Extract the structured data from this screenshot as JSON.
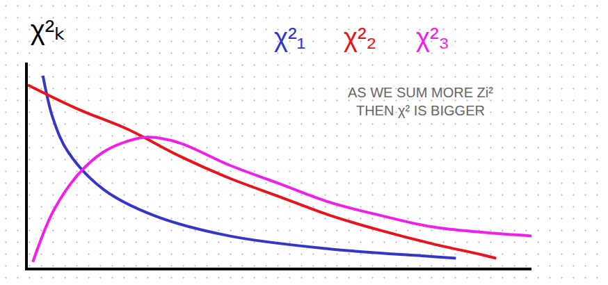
{
  "chart_data": {
    "type": "line",
    "title": "χ²ₖ",
    "annotations": [
      "AS WE SUM MORE Zi² THEN χ² IS BIGGER"
    ],
    "xlim": [
      0,
      10
    ],
    "ylim": [
      0,
      1.1
    ],
    "tick_labels": false,
    "grid": false,
    "series": [
      {
        "name": "χ²₁",
        "color": "#3535c8",
        "x": [
          0.3,
          0.5,
          0.8,
          1.5,
          2.5,
          4,
          6,
          8,
          8.5
        ],
        "values": [
          1.03,
          0.8,
          0.62,
          0.42,
          0.28,
          0.17,
          0.1,
          0.06,
          0.05
        ]
      },
      {
        "name": "χ²₂",
        "color": "#e8141c",
        "x": [
          0,
          1,
          2,
          3,
          4,
          5,
          6,
          7,
          8,
          9,
          9.3
        ],
        "values": [
          0.98,
          0.85,
          0.74,
          0.6,
          0.48,
          0.38,
          0.28,
          0.2,
          0.13,
          0.07,
          0.05
        ]
      },
      {
        "name": "χ²₃",
        "color": "#f020e8",
        "x": [
          0.1,
          0.5,
          1,
          1.5,
          2,
          2.4,
          3,
          4,
          5,
          6,
          7,
          8,
          9,
          10
        ],
        "values": [
          0.03,
          0.3,
          0.5,
          0.62,
          0.68,
          0.7,
          0.67,
          0.55,
          0.45,
          0.35,
          0.28,
          0.22,
          0.19,
          0.17
        ]
      }
    ]
  }
}
